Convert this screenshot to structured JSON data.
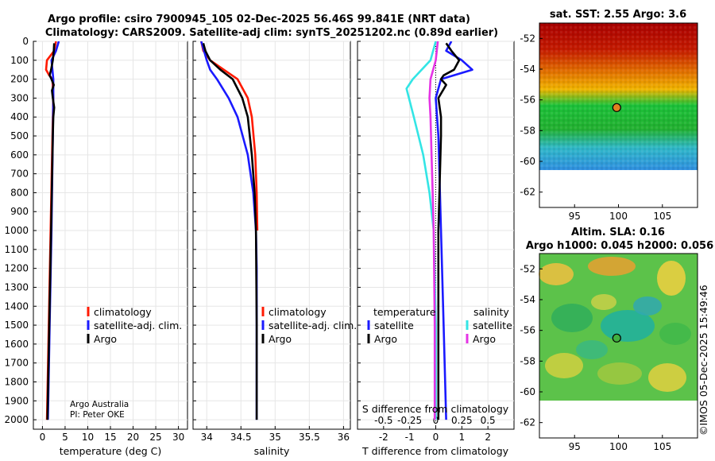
{
  "title": {
    "line1": "Argo profile: csiro 7900945_105 02-Dec-2025 56.46S 99.841E (NRT data)",
    "line2": "Climatology: CARS2009. Satellite-adj clim: synTS_20251202.nc (0.89d earlier)"
  },
  "credit": {
    "line1": "Argo Australia",
    "line2": "PI: Peter OKE"
  },
  "watermark": "©IMOS 05-Dec-2025 15:49:46",
  "colors": {
    "climatology": "#ff1a00",
    "satellite": "#1a1aff",
    "argo": "#000000",
    "sat_t_diff": "#33e5e5",
    "sat_s_diff": "#e533e5"
  },
  "chart_data": [
    {
      "type": "line",
      "name": "temperature-profile",
      "xlabel": "temperature (deg C)",
      "ylabel": "",
      "xlim": [
        -2,
        32
      ],
      "ylim": [
        2050,
        0
      ],
      "xticks": [
        0,
        5,
        10,
        15,
        20,
        25,
        30
      ],
      "yticks": [
        0,
        100,
        200,
        300,
        400,
        500,
        600,
        700,
        800,
        900,
        1000,
        1100,
        1200,
        1300,
        1400,
        1500,
        1600,
        1700,
        1800,
        1900,
        2000
      ],
      "legend": [
        "climatology",
        "satellite-adj. clim.",
        "Argo"
      ],
      "series": [
        {
          "name": "climatology",
          "depth": [
            0,
            50,
            100,
            150,
            180,
            200,
            300,
            500,
            1000,
            1500,
            2000
          ],
          "values": [
            3.0,
            2.6,
            1.0,
            0.8,
            1.5,
            2.2,
            2.4,
            2.2,
            1.8,
            1.4,
            1.0
          ]
        },
        {
          "name": "satellite-adj. clim.",
          "depth": [
            0,
            50,
            100,
            150,
            200,
            300,
            500,
            1000,
            1500,
            2000
          ],
          "values": [
            3.6,
            3.0,
            2.0,
            2.2,
            2.4,
            2.4,
            2.3,
            2.0,
            1.6,
            1.2
          ]
        },
        {
          "name": "Argo",
          "depth": [
            10,
            50,
            100,
            150,
            180,
            200,
            230,
            260,
            300,
            350,
            400,
            500,
            1000,
            1500,
            2000
          ],
          "values": [
            2.6,
            2.5,
            2.3,
            1.9,
            1.6,
            2.0,
            2.5,
            2.1,
            2.3,
            2.6,
            2.4,
            2.3,
            1.9,
            1.5,
            1.1
          ]
        }
      ]
    },
    {
      "type": "line",
      "name": "salinity-profile",
      "xlabel": "salinity",
      "xlim": [
        33.8,
        36.1
      ],
      "ylim": [
        2050,
        0
      ],
      "xticks": [
        34,
        34.5,
        35,
        35.5,
        36
      ],
      "legend": [
        "climatology",
        "satellite-adj. clim.",
        "Argo"
      ],
      "series": [
        {
          "name": "climatology",
          "depth": [
            0,
            50,
            100,
            150,
            200,
            300,
            400,
            600,
            800,
            1000
          ],
          "values": [
            33.92,
            33.95,
            34.05,
            34.25,
            34.45,
            34.6,
            34.66,
            34.71,
            34.73,
            34.74
          ]
        },
        {
          "name": "satellite-adj. clim.",
          "depth": [
            0,
            50,
            100,
            150,
            200,
            300,
            400,
            600,
            800,
            1000,
            1200,
            2000
          ],
          "values": [
            33.92,
            33.96,
            34.0,
            34.05,
            34.15,
            34.32,
            34.45,
            34.6,
            34.68,
            34.72,
            34.73,
            34.73
          ]
        },
        {
          "name": "Argo",
          "depth": [
            10,
            50,
            100,
            150,
            200,
            300,
            400,
            600,
            800,
            1000,
            1500,
            2000
          ],
          "values": [
            33.95,
            33.98,
            34.05,
            34.2,
            34.38,
            34.52,
            34.6,
            34.66,
            34.7,
            34.72,
            34.73,
            34.73
          ]
        }
      ]
    },
    {
      "type": "line",
      "name": "difference-profile",
      "xlabel": "T difference from climatology",
      "xlabel_top": "S difference from climatology",
      "xlim": [
        -3,
        3
      ],
      "ylim": [
        2050,
        0
      ],
      "xticks": [
        -2,
        -1,
        0,
        1,
        2
      ],
      "xticks_top": [
        "-0.5",
        "-0.25",
        "0",
        "0.25",
        "0.5"
      ],
      "legend_t_title": "temperature",
      "legend_s_title": "salinity",
      "legend_t": [
        "satellite",
        "Argo"
      ],
      "legend_s": [
        "satellite",
        "Argo"
      ],
      "series": [
        {
          "name": "T satellite",
          "depth": [
            0,
            50,
            100,
            150,
            200,
            300,
            500,
            1000,
            1500,
            2000
          ],
          "values": [
            0.6,
            0.4,
            1.0,
            1.4,
            0.2,
            0.0,
            0.1,
            0.2,
            0.3,
            0.4
          ]
        },
        {
          "name": "T Argo",
          "depth": [
            10,
            50,
            100,
            150,
            180,
            200,
            230,
            300,
            400,
            500,
            1000,
            1500,
            2000
          ],
          "values": [
            0.4,
            0.6,
            0.9,
            0.7,
            0.3,
            0.2,
            0.4,
            0.1,
            0.2,
            0.2,
            0.1,
            0.1,
            0.1
          ]
        },
        {
          "name": "S satellite",
          "depth": [
            0,
            100,
            200,
            250,
            400,
            600,
            800,
            1000,
            1500,
            2000
          ],
          "values": [
            0.0,
            -0.05,
            -0.22,
            -0.28,
            -0.21,
            -0.12,
            -0.06,
            -0.02,
            0.0,
            0.0
          ]
        },
        {
          "name": "S Argo",
          "depth": [
            0,
            100,
            200,
            300,
            400,
            600,
            800,
            1000,
            1500,
            2000
          ],
          "values": [
            0.02,
            0.0,
            -0.05,
            -0.06,
            -0.05,
            -0.04,
            -0.03,
            -0.02,
            -0.01,
            -0.01
          ]
        }
      ]
    },
    {
      "type": "heatmap",
      "name": "sat-sst-map",
      "title": "sat. SST: 2.55 Argo: 3.6",
      "xticks": [
        95,
        100,
        105
      ],
      "yticks": [
        -52,
        -54,
        -56,
        -58,
        -60,
        -62
      ],
      "xlim": [
        91,
        109
      ],
      "ylim": [
        -63,
        -51
      ],
      "argo_position": {
        "lon": 99.8,
        "lat": -56.5
      }
    },
    {
      "type": "heatmap",
      "name": "altim-sla-map",
      "title_line1": "Altim. SLA: 0.16",
      "title_line2": "Argo h1000: 0.045 h2000: 0.056",
      "xticks": [
        95,
        100,
        105
      ],
      "yticks": [
        -52,
        -54,
        -56,
        -58,
        -60,
        -62
      ],
      "xlim": [
        91,
        109
      ],
      "ylim": [
        -63,
        -51
      ],
      "argo_position": {
        "lon": 99.8,
        "lat": -56.5
      }
    }
  ]
}
